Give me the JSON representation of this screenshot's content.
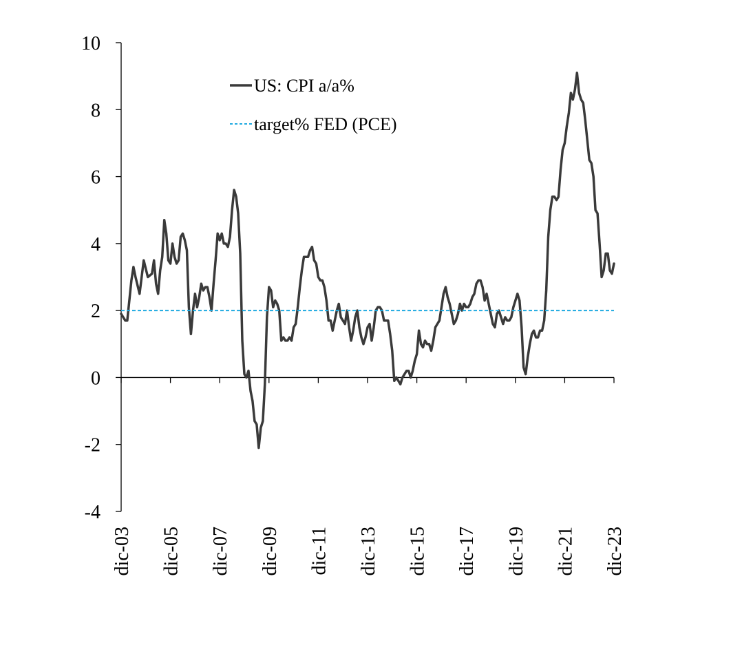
{
  "chart_data": {
    "type": "line",
    "title": "",
    "xlabel": "",
    "ylabel": "",
    "ylim": [
      -4,
      10
    ],
    "yticks": [
      "10",
      "8",
      "6",
      "4",
      "2",
      "0",
      "-2",
      "-4"
    ],
    "x_tick_labels": [
      "dic-03",
      "dic-05",
      "dic-07",
      "dic-09",
      "dic-11",
      "dic-13",
      "dic-15",
      "dic-17",
      "dic-19",
      "dic-21",
      "dic-23"
    ],
    "x_start": "2003-12",
    "x_end": "2023-12",
    "grid": false,
    "legend_position": "top-center",
    "series": [
      {
        "name": "US: CPI a/a%",
        "color": "#3a3a3a",
        "style": "solid",
        "points": [
          [
            "2003-12",
            1.9
          ],
          [
            "2004-02",
            1.7
          ],
          [
            "2004-03",
            1.7
          ],
          [
            "2004-05",
            2.9
          ],
          [
            "2004-06",
            3.3
          ],
          [
            "2004-07",
            3.0
          ],
          [
            "2004-09",
            2.5
          ],
          [
            "2004-11",
            3.5
          ],
          [
            "2005-01",
            3.0
          ],
          [
            "2005-03",
            3.1
          ],
          [
            "2005-04",
            3.5
          ],
          [
            "2005-05",
            2.8
          ],
          [
            "2005-06",
            2.5
          ],
          [
            "2005-07",
            3.2
          ],
          [
            "2005-08",
            3.6
          ],
          [
            "2005-09",
            4.7
          ],
          [
            "2005-10",
            4.3
          ],
          [
            "2005-11",
            3.5
          ],
          [
            "2005-12",
            3.4
          ],
          [
            "2006-01",
            4.0
          ],
          [
            "2006-02",
            3.6
          ],
          [
            "2006-03",
            3.4
          ],
          [
            "2006-04",
            3.5
          ],
          [
            "2006-05",
            4.2
          ],
          [
            "2006-06",
            4.3
          ],
          [
            "2006-07",
            4.1
          ],
          [
            "2006-08",
            3.8
          ],
          [
            "2006-09",
            2.1
          ],
          [
            "2006-10",
            1.3
          ],
          [
            "2006-11",
            2.0
          ],
          [
            "2006-12",
            2.5
          ],
          [
            "2007-01",
            2.1
          ],
          [
            "2007-02",
            2.4
          ],
          [
            "2007-03",
            2.8
          ],
          [
            "2007-04",
            2.6
          ],
          [
            "2007-05",
            2.7
          ],
          [
            "2007-06",
            2.7
          ],
          [
            "2007-07",
            2.4
          ],
          [
            "2007-08",
            2.0
          ],
          [
            "2007-09",
            2.8
          ],
          [
            "2007-10",
            3.5
          ],
          [
            "2007-11",
            4.3
          ],
          [
            "2007-12",
            4.1
          ],
          [
            "2008-01",
            4.3
          ],
          [
            "2008-02",
            4.0
          ],
          [
            "2008-03",
            4.0
          ],
          [
            "2008-04",
            3.9
          ],
          [
            "2008-05",
            4.2
          ],
          [
            "2008-06",
            5.0
          ],
          [
            "2008-07",
            5.6
          ],
          [
            "2008-08",
            5.4
          ],
          [
            "2008-09",
            4.9
          ],
          [
            "2008-10",
            3.7
          ],
          [
            "2008-11",
            1.1
          ],
          [
            "2008-12",
            0.1
          ],
          [
            "2009-01",
            0.0
          ],
          [
            "2009-02",
            0.2
          ],
          [
            "2009-03",
            -0.4
          ],
          [
            "2009-04",
            -0.7
          ],
          [
            "2009-05",
            -1.3
          ],
          [
            "2009-06",
            -1.4
          ],
          [
            "2009-07",
            -2.1
          ],
          [
            "2009-08",
            -1.5
          ],
          [
            "2009-09",
            -1.3
          ],
          [
            "2009-10",
            -0.2
          ],
          [
            "2009-11",
            1.8
          ],
          [
            "2009-12",
            2.7
          ],
          [
            "2010-01",
            2.6
          ],
          [
            "2010-02",
            2.1
          ],
          [
            "2010-03",
            2.3
          ],
          [
            "2010-04",
            2.2
          ],
          [
            "2010-05",
            2.0
          ],
          [
            "2010-06",
            1.1
          ],
          [
            "2010-07",
            1.2
          ],
          [
            "2010-08",
            1.1
          ],
          [
            "2010-09",
            1.1
          ],
          [
            "2010-10",
            1.2
          ],
          [
            "2010-11",
            1.1
          ],
          [
            "2010-12",
            1.5
          ],
          [
            "2011-01",
            1.6
          ],
          [
            "2011-02",
            2.1
          ],
          [
            "2011-03",
            2.7
          ],
          [
            "2011-04",
            3.2
          ],
          [
            "2011-05",
            3.6
          ],
          [
            "2011-06",
            3.6
          ],
          [
            "2011-07",
            3.6
          ],
          [
            "2011-08",
            3.8
          ],
          [
            "2011-09",
            3.9
          ],
          [
            "2011-10",
            3.5
          ],
          [
            "2011-11",
            3.4
          ],
          [
            "2011-12",
            3.0
          ],
          [
            "2012-01",
            2.9
          ],
          [
            "2012-02",
            2.9
          ],
          [
            "2012-03",
            2.7
          ],
          [
            "2012-04",
            2.3
          ],
          [
            "2012-05",
            1.7
          ],
          [
            "2012-06",
            1.7
          ],
          [
            "2012-07",
            1.4
          ],
          [
            "2012-08",
            1.7
          ],
          [
            "2012-09",
            2.0
          ],
          [
            "2012-10",
            2.2
          ],
          [
            "2012-11",
            1.8
          ],
          [
            "2012-12",
            1.7
          ],
          [
            "2013-01",
            1.6
          ],
          [
            "2013-02",
            2.0
          ],
          [
            "2013-03",
            1.5
          ],
          [
            "2013-04",
            1.1
          ],
          [
            "2013-05",
            1.4
          ],
          [
            "2013-06",
            1.8
          ],
          [
            "2013-07",
            2.0
          ],
          [
            "2013-08",
            1.5
          ],
          [
            "2013-09",
            1.2
          ],
          [
            "2013-10",
            1.0
          ],
          [
            "2013-11",
            1.2
          ],
          [
            "2013-12",
            1.5
          ],
          [
            "2014-01",
            1.6
          ],
          [
            "2014-02",
            1.1
          ],
          [
            "2014-03",
            1.5
          ],
          [
            "2014-04",
            2.0
          ],
          [
            "2014-05",
            2.1
          ],
          [
            "2014-06",
            2.1
          ],
          [
            "2014-07",
            2.0
          ],
          [
            "2014-08",
            1.7
          ],
          [
            "2014-09",
            1.7
          ],
          [
            "2014-10",
            1.7
          ],
          [
            "2014-11",
            1.3
          ],
          [
            "2014-12",
            0.8
          ],
          [
            "2015-01",
            -0.1
          ],
          [
            "2015-02",
            0.0
          ],
          [
            "2015-03",
            -0.1
          ],
          [
            "2015-04",
            -0.2
          ],
          [
            "2015-05",
            0.0
          ],
          [
            "2015-06",
            0.1
          ],
          [
            "2015-07",
            0.2
          ],
          [
            "2015-08",
            0.2
          ],
          [
            "2015-09",
            0.0
          ],
          [
            "2015-10",
            0.2
          ],
          [
            "2015-11",
            0.5
          ],
          [
            "2015-12",
            0.7
          ],
          [
            "2016-01",
            1.4
          ],
          [
            "2016-02",
            1.0
          ],
          [
            "2016-03",
            0.9
          ],
          [
            "2016-04",
            1.1
          ],
          [
            "2016-05",
            1.0
          ],
          [
            "2016-06",
            1.0
          ],
          [
            "2016-07",
            0.8
          ],
          [
            "2016-08",
            1.1
          ],
          [
            "2016-09",
            1.5
          ],
          [
            "2016-10",
            1.6
          ],
          [
            "2016-11",
            1.7
          ],
          [
            "2016-12",
            2.1
          ],
          [
            "2017-01",
            2.5
          ],
          [
            "2017-02",
            2.7
          ],
          [
            "2017-03",
            2.4
          ],
          [
            "2017-04",
            2.2
          ],
          [
            "2017-05",
            1.9
          ],
          [
            "2017-06",
            1.6
          ],
          [
            "2017-07",
            1.7
          ],
          [
            "2017-08",
            1.9
          ],
          [
            "2017-09",
            2.2
          ],
          [
            "2017-10",
            2.0
          ],
          [
            "2017-11",
            2.2
          ],
          [
            "2017-12",
            2.1
          ],
          [
            "2018-01",
            2.1
          ],
          [
            "2018-02",
            2.2
          ],
          [
            "2018-03",
            2.4
          ],
          [
            "2018-04",
            2.5
          ],
          [
            "2018-05",
            2.8
          ],
          [
            "2018-06",
            2.9
          ],
          [
            "2018-07",
            2.9
          ],
          [
            "2018-08",
            2.7
          ],
          [
            "2018-09",
            2.3
          ],
          [
            "2018-10",
            2.5
          ],
          [
            "2018-11",
            2.2
          ],
          [
            "2018-12",
            1.9
          ],
          [
            "2019-01",
            1.6
          ],
          [
            "2019-02",
            1.5
          ],
          [
            "2019-03",
            1.9
          ],
          [
            "2019-04",
            2.0
          ],
          [
            "2019-05",
            1.8
          ],
          [
            "2019-06",
            1.6
          ],
          [
            "2019-07",
            1.8
          ],
          [
            "2019-08",
            1.7
          ],
          [
            "2019-09",
            1.7
          ],
          [
            "2019-10",
            1.8
          ],
          [
            "2019-11",
            2.1
          ],
          [
            "2019-12",
            2.3
          ],
          [
            "2020-01",
            2.5
          ],
          [
            "2020-02",
            2.3
          ],
          [
            "2020-03",
            1.5
          ],
          [
            "2020-04",
            0.3
          ],
          [
            "2020-05",
            0.1
          ],
          [
            "2020-06",
            0.6
          ],
          [
            "2020-07",
            1.0
          ],
          [
            "2020-08",
            1.3
          ],
          [
            "2020-09",
            1.4
          ],
          [
            "2020-10",
            1.2
          ],
          [
            "2020-11",
            1.2
          ],
          [
            "2020-12",
            1.4
          ],
          [
            "2021-01",
            1.4
          ],
          [
            "2021-02",
            1.7
          ],
          [
            "2021-03",
            2.6
          ],
          [
            "2021-04",
            4.2
          ],
          [
            "2021-05",
            5.0
          ],
          [
            "2021-06",
            5.4
          ],
          [
            "2021-07",
            5.4
          ],
          [
            "2021-08",
            5.3
          ],
          [
            "2021-09",
            5.4
          ],
          [
            "2021-10",
            6.2
          ],
          [
            "2021-11",
            6.8
          ],
          [
            "2021-12",
            7.0
          ],
          [
            "2022-01",
            7.5
          ],
          [
            "2022-02",
            7.9
          ],
          [
            "2022-03",
            8.5
          ],
          [
            "2022-04",
            8.3
          ],
          [
            "2022-05",
            8.6
          ],
          [
            "2022-06",
            9.1
          ],
          [
            "2022-07",
            8.5
          ],
          [
            "2022-08",
            8.3
          ],
          [
            "2022-09",
            8.2
          ],
          [
            "2022-10",
            7.7
          ],
          [
            "2022-11",
            7.1
          ],
          [
            "2022-12",
            6.5
          ],
          [
            "2023-01",
            6.4
          ],
          [
            "2023-02",
            6.0
          ],
          [
            "2023-03",
            5.0
          ],
          [
            "2023-04",
            4.9
          ],
          [
            "2023-05",
            4.0
          ],
          [
            "2023-06",
            3.0
          ],
          [
            "2023-07",
            3.2
          ],
          [
            "2023-08",
            3.7
          ],
          [
            "2023-09",
            3.7
          ],
          [
            "2023-10",
            3.2
          ],
          [
            "2023-11",
            3.1
          ],
          [
            "2023-12",
            3.4
          ]
        ]
      },
      {
        "name": "target% FED (PCE)",
        "color": "#1fa9e0",
        "style": "dashed",
        "points": [
          [
            "2003-12",
            2.0
          ],
          [
            "2023-12",
            2.0
          ]
        ]
      }
    ]
  }
}
